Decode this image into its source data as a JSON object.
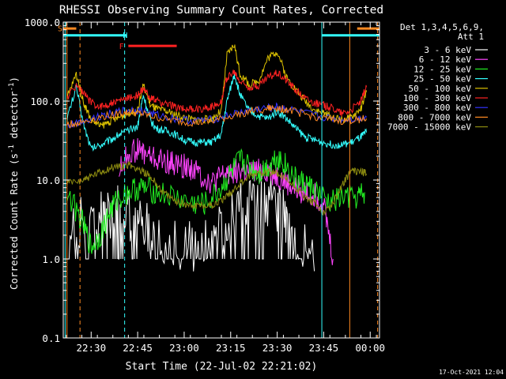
{
  "chart_data": {
    "type": "line",
    "title": "RHESSI Observing Summary Count Rates, Corrected",
    "xlabel": "Start Time (22-Jul-02 22:21:02)",
    "ylabel": "Corrected Count Rate (s-1 detector-1)",
    "ylabel_parts": {
      "pre": "Corrected Count Rate (s",
      "sup1": "-1",
      "mid": " detector",
      "sup2": "-1",
      "post": ")"
    },
    "yscale": "log",
    "ylim": [
      0.1,
      1000
    ],
    "y_ticks": [
      {
        "v": 0.1,
        "label": "0.1"
      },
      {
        "v": 1,
        "label": "1.0"
      },
      {
        "v": 10,
        "label": "10.0"
      },
      {
        "v": 100,
        "label": "100.0"
      },
      {
        "v": 1000,
        "label": "1000.0"
      }
    ],
    "xlim": [
      22.35,
      24.05
    ],
    "x_ticks": [
      {
        "v": 22.5,
        "label": "22:30"
      },
      {
        "v": 22.75,
        "label": "22:45"
      },
      {
        "v": 23.0,
        "label": "23:00"
      },
      {
        "v": 23.25,
        "label": "23:15"
      },
      {
        "v": 23.5,
        "label": "23:30"
      },
      {
        "v": 23.75,
        "label": "23:45"
      },
      {
        "v": 24.0,
        "label": "00:00"
      }
    ],
    "legend": {
      "header": [
        "Det 1,3,4,5,6,9,",
        "Att 1"
      ],
      "placement": "right"
    },
    "series": [
      {
        "name": "3 - 6 keV",
        "color": "#ffffff",
        "x": [
          22.37,
          22.45,
          22.55,
          22.6,
          22.65,
          22.72,
          22.78,
          22.85,
          22.95,
          23.05,
          23.12,
          23.2,
          23.28,
          23.35,
          23.42,
          23.5,
          23.55,
          23.62,
          23.7
        ],
        "y": [
          3,
          3,
          3.5,
          4,
          3.8,
          3.5,
          3,
          2.2,
          1.6,
          1.3,
          1.5,
          2.5,
          4,
          4.5,
          5,
          4.5,
          3.5,
          2,
          0.7
        ]
      },
      {
        "name": "6 - 12 keV",
        "color": "#ff44ff",
        "x": [
          22.65,
          22.7,
          22.75,
          22.8,
          22.85,
          22.9,
          22.95,
          23.0,
          23.05,
          23.1,
          23.15,
          23.2,
          23.25,
          23.3,
          23.35,
          23.4,
          23.45,
          23.5,
          23.55,
          23.6,
          23.65,
          23.7,
          23.75,
          23.8
        ],
        "y": [
          13,
          22,
          24,
          21,
          18,
          17,
          16,
          15,
          14,
          11,
          9,
          11,
          13,
          13,
          12,
          13,
          13,
          11,
          9,
          7.5,
          7,
          6.5,
          5,
          1
        ]
      },
      {
        "name": "12 - 25 keV",
        "color": "#22ee22",
        "x": [
          22.37,
          22.45,
          22.5,
          22.55,
          22.6,
          22.65,
          22.72,
          22.78,
          22.85,
          22.95,
          23.05,
          23.12,
          23.2,
          23.25,
          23.3,
          23.35,
          23.4,
          23.45,
          23.5,
          23.55,
          23.6,
          23.65,
          23.7,
          23.78,
          23.85,
          23.93,
          23.97
        ],
        "y": [
          7,
          3,
          1.4,
          2,
          4,
          6,
          7.5,
          8,
          7,
          6,
          5,
          5,
          8,
          12,
          18,
          15,
          12,
          15,
          20,
          15,
          10,
          9,
          7.5,
          5,
          6,
          6,
          7
        ]
      },
      {
        "name": "25 - 50 keV",
        "color": "#33ffff",
        "x": [
          22.37,
          22.42,
          22.46,
          22.5,
          22.55,
          22.6,
          22.65,
          22.7,
          22.75,
          22.78,
          22.82,
          22.85,
          22.9,
          22.95,
          23.0,
          23.05,
          23.1,
          23.15,
          23.2,
          23.23,
          23.27,
          23.3,
          23.35,
          23.4,
          23.45,
          23.5,
          23.55,
          23.6,
          23.65,
          23.7,
          23.75,
          23.8,
          23.85,
          23.9,
          23.95,
          23.98
        ],
        "y": [
          60,
          150,
          50,
          25,
          28,
          32,
          38,
          42,
          48,
          120,
          55,
          45,
          42,
          38,
          32,
          30,
          30,
          30,
          38,
          100,
          220,
          120,
          75,
          65,
          60,
          75,
          60,
          45,
          35,
          32,
          30,
          28,
          28,
          30,
          35,
          40
        ]
      },
      {
        "name": "50 - 100 keV",
        "color": "#ddc200",
        "x": [
          22.37,
          22.42,
          22.46,
          22.5,
          22.55,
          22.6,
          22.65,
          22.7,
          22.75,
          22.78,
          22.82,
          22.85,
          22.9,
          22.95,
          23.0,
          23.05,
          23.1,
          23.15,
          23.2,
          23.23,
          23.27,
          23.3,
          23.35,
          23.4,
          23.45,
          23.5,
          23.55,
          23.6,
          23.65,
          23.7,
          23.75,
          23.8,
          23.85,
          23.9,
          23.95,
          23.98
        ],
        "y": [
          110,
          220,
          95,
          58,
          48,
          55,
          62,
          70,
          76,
          160,
          88,
          80,
          74,
          68,
          62,
          58,
          58,
          60,
          75,
          380,
          520,
          220,
          160,
          180,
          350,
          430,
          200,
          140,
          100,
          78,
          70,
          62,
          58,
          62,
          80,
          130
        ]
      },
      {
        "name": "100 - 300 keV",
        "color": "#ff2222",
        "x": [
          22.37,
          22.42,
          22.46,
          22.5,
          22.55,
          22.6,
          22.65,
          22.7,
          22.75,
          22.78,
          22.82,
          22.85,
          22.9,
          22.95,
          23.0,
          23.05,
          23.1,
          23.15,
          23.2,
          23.23,
          23.27,
          23.3,
          23.35,
          23.4,
          23.45,
          23.5,
          23.55,
          23.6,
          23.65,
          23.7,
          23.75,
          23.8,
          23.85,
          23.9,
          23.95,
          23.98
        ],
        "y": [
          110,
          160,
          125,
          95,
          85,
          92,
          100,
          110,
          118,
          140,
          110,
          100,
          92,
          85,
          80,
          78,
          80,
          85,
          100,
          200,
          230,
          175,
          150,
          155,
          200,
          230,
          185,
          140,
          110,
          95,
          88,
          82,
          70,
          78,
          100,
          150
        ]
      },
      {
        "name": "300 - 800 keV",
        "color": "#3333ff",
        "x": [
          22.37,
          22.45,
          22.55,
          22.65,
          22.72,
          22.78,
          22.85,
          22.95,
          23.05,
          23.15,
          23.25,
          23.35,
          23.45,
          23.5,
          23.55,
          23.65,
          23.75,
          23.85,
          23.93,
          23.98
        ],
        "y": [
          48,
          56,
          65,
          74,
          78,
          74,
          67,
          60,
          56,
          58,
          67,
          76,
          82,
          84,
          80,
          70,
          62,
          58,
          60,
          62
        ]
      },
      {
        "name": "800 - 7000 keV",
        "color": "#ff8a22",
        "x": [
          22.37,
          22.45,
          22.55,
          22.65,
          22.72,
          22.78,
          22.85,
          22.95,
          23.05,
          23.15,
          23.25,
          23.35,
          23.45,
          23.5,
          23.55,
          23.65,
          23.75,
          23.85,
          23.93,
          23.98
        ],
        "y": [
          50,
          54,
          62,
          70,
          72,
          68,
          62,
          56,
          53,
          55,
          64,
          74,
          80,
          82,
          78,
          68,
          60,
          56,
          58,
          60
        ]
      },
      {
        "name": "7000 - 15000 keV",
        "color": "#8b8a10",
        "x": [
          22.37,
          22.45,
          22.5,
          22.55,
          22.6,
          22.65,
          22.7,
          22.75,
          22.8,
          22.85,
          22.9,
          22.95,
          23.0,
          23.05,
          23.1,
          23.15,
          23.2,
          23.25,
          23.3,
          23.35,
          23.4,
          23.45,
          23.5,
          23.55,
          23.6,
          23.65,
          23.7,
          23.75,
          23.8,
          23.85,
          23.9,
          23.95,
          23.98
        ],
        "y": [
          9,
          10,
          11,
          12.5,
          14,
          15,
          15.5,
          14,
          12,
          9,
          6.5,
          5.5,
          5,
          4.8,
          4.8,
          4.8,
          5.5,
          7,
          9,
          11,
          12.5,
          13,
          12,
          10,
          8,
          6,
          5,
          4,
          5,
          9,
          13,
          13,
          12
        ]
      }
    ],
    "annotations": {
      "labels": [
        {
          "text": "S",
          "color": "#ff8a22",
          "x": 22.35,
          "y": 840
        },
        {
          "text": "N",
          "color": "#33ffff",
          "x": 22.7,
          "y": 690
        },
        {
          "text": "F",
          "color": "#ff2222",
          "x": 22.68,
          "y": 500
        }
      ],
      "bars": [
        {
          "name": "saa",
          "color": "#ff8a22",
          "x": [
            22.35,
            22.42
          ],
          "y": 830
        },
        {
          "name": "saa",
          "color": "#ff8a22",
          "x": [
            23.93,
            24.05
          ],
          "y": 830
        },
        {
          "name": "night",
          "color": "#33ffff",
          "x": [
            22.35,
            22.69
          ],
          "y": 680
        },
        {
          "name": "night",
          "color": "#33ffff",
          "x": [
            23.74,
            24.05
          ],
          "y": 680
        },
        {
          "name": "flare",
          "color": "#ff2222",
          "x": [
            22.7,
            22.96
          ],
          "y": 500
        }
      ],
      "vlines": [
        {
          "x": 22.37,
          "color": "#ff8a22",
          "style": "solid"
        },
        {
          "x": 22.44,
          "color": "#ff8a22",
          "style": "dash"
        },
        {
          "x": 22.36,
          "color": "#33ffff",
          "style": "solid"
        },
        {
          "x": 22.68,
          "color": "#33ffff",
          "style": "dash"
        },
        {
          "x": 23.74,
          "color": "#33ffff",
          "style": "solid"
        },
        {
          "x": 23.89,
          "color": "#ff8a22",
          "style": "solid"
        },
        {
          "x": 24.04,
          "color": "#ff8a22",
          "style": "dash"
        }
      ]
    },
    "timestamp": "17-Oct-2021 12:04"
  }
}
